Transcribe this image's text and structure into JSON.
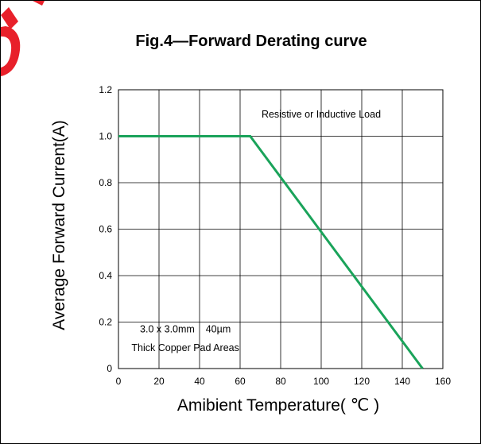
{
  "chart_data": {
    "type": "line",
    "title": "Fig.4—Forward Derating curve",
    "xlabel": "Amibient Temperature( ℃ )",
    "ylabel": "Average Forward Current(A)",
    "xlim": [
      0,
      160
    ],
    "ylim": [
      0,
      1.2
    ],
    "x_ticks": [
      "0",
      "20",
      "40",
      "60",
      "80",
      "100",
      "120",
      "140",
      "160"
    ],
    "y_ticks": [
      "0",
      "0.2",
      "0.4",
      "0.6",
      "0.8",
      "1.0",
      "1.2"
    ],
    "grid": true,
    "series": [
      {
        "color": "#1aa35a",
        "x": [
          0,
          65,
          150
        ],
        "y": [
          1.0,
          1.0,
          0.0
        ]
      }
    ],
    "annotations": [
      "Resistive or Inductive Load",
      "3.0 x 3.0mm    40µm",
      "Thick Copper Pad Areas"
    ]
  },
  "watermark_color": "#e8202a"
}
